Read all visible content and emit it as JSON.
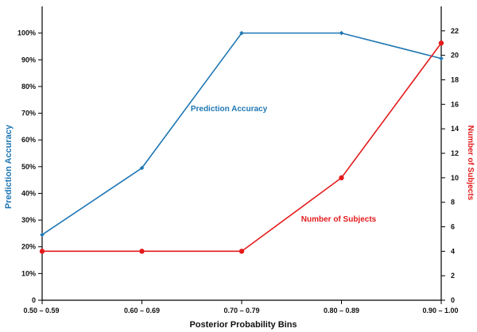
{
  "chart_data": {
    "type": "line",
    "categories": [
      "0.50 – 0.59",
      "0.60 – 0.69",
      "0.70 – 0.79",
      "0.80 – 0.89",
      "0.90 – 1.00"
    ],
    "xlabel": "Posterior Probability Bins",
    "ylabel_left": "Prediction Accuracy",
    "ylabel_right": "Number of Subjects",
    "ylim_left": [
      0,
      110
    ],
    "ylim_right": [
      0,
      24
    ],
    "yticks_left": [
      "0",
      "10%",
      "20%",
      "30%",
      "40%",
      "50%",
      "60%",
      "70%",
      "80%",
      "90%",
      "100%"
    ],
    "yticks_right": [
      "0",
      "2",
      "4",
      "6",
      "8",
      "10",
      "12",
      "14",
      "16",
      "18",
      "20",
      "22"
    ],
    "grid": false,
    "series": [
      {
        "name": "Prediction Accuracy",
        "axis": "left",
        "color": "#1f77b4",
        "marker": "diamond",
        "values": [
          24.5,
          49.5,
          100,
          100,
          90.5
        ]
      },
      {
        "name": "Number of Subjects",
        "axis": "right",
        "color": "#e41a1c",
        "marker": "circle",
        "values": [
          4,
          4,
          4,
          10,
          21
        ]
      }
    ]
  }
}
